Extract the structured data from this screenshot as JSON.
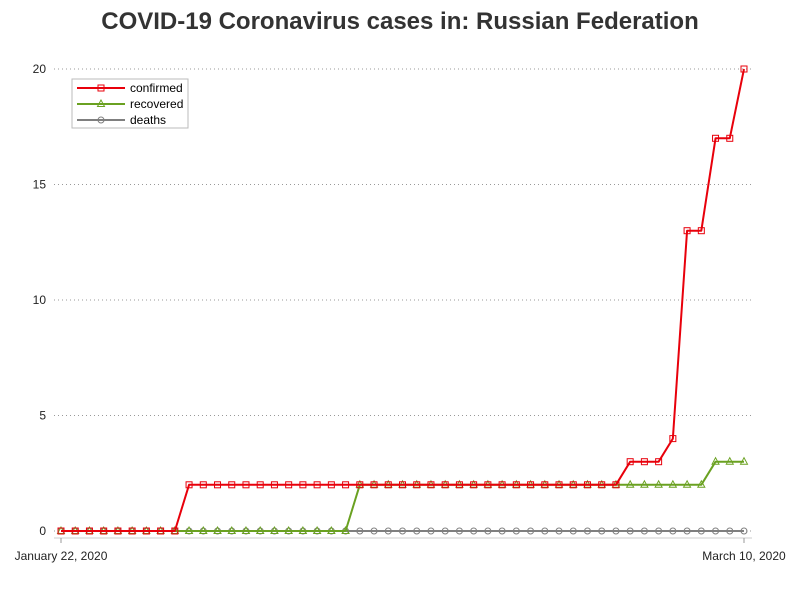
{
  "title": "COVID-19 Coronavirus cases in: Russian Federation",
  "chart_data": {
    "type": "line",
    "title": "COVID-19 Coronavirus cases in: Russian Federation",
    "x": [
      "2020-01-22",
      "2020-01-23",
      "2020-01-24",
      "2020-01-25",
      "2020-01-26",
      "2020-01-27",
      "2020-01-28",
      "2020-01-29",
      "2020-01-30",
      "2020-01-31",
      "2020-02-01",
      "2020-02-02",
      "2020-02-03",
      "2020-02-04",
      "2020-02-05",
      "2020-02-06",
      "2020-02-07",
      "2020-02-08",
      "2020-02-09",
      "2020-02-10",
      "2020-02-11",
      "2020-02-12",
      "2020-02-13",
      "2020-02-14",
      "2020-02-15",
      "2020-02-16",
      "2020-02-17",
      "2020-02-18",
      "2020-02-19",
      "2020-02-20",
      "2020-02-21",
      "2020-02-22",
      "2020-02-23",
      "2020-02-24",
      "2020-02-25",
      "2020-02-26",
      "2020-02-27",
      "2020-02-28",
      "2020-02-29",
      "2020-03-01",
      "2020-03-02",
      "2020-03-03",
      "2020-03-04",
      "2020-03-05",
      "2020-03-06",
      "2020-03-07",
      "2020-03-08",
      "2020-03-09",
      "2020-03-10"
    ],
    "xtick_labels": [
      "January 22, 2020",
      "March 10, 2020"
    ],
    "ylim": [
      0,
      20
    ],
    "yticks": [
      0,
      5,
      10,
      15,
      20
    ],
    "grid": "horizontal dotted",
    "legend_position": "top-left",
    "series": [
      {
        "name": "confirmed",
        "color": "#e8000b",
        "marker": "square",
        "values": [
          0,
          0,
          0,
          0,
          0,
          0,
          0,
          0,
          0,
          2,
          2,
          2,
          2,
          2,
          2,
          2,
          2,
          2,
          2,
          2,
          2,
          2,
          2,
          2,
          2,
          2,
          2,
          2,
          2,
          2,
          2,
          2,
          2,
          2,
          2,
          2,
          2,
          2,
          2,
          2,
          3,
          3,
          3,
          4,
          13,
          13,
          17,
          17,
          20
        ]
      },
      {
        "name": "recovered",
        "color": "#6aa121",
        "marker": "triangle",
        "values": [
          0,
          0,
          0,
          0,
          0,
          0,
          0,
          0,
          0,
          0,
          0,
          0,
          0,
          0,
          0,
          0,
          0,
          0,
          0,
          0,
          0,
          2,
          2,
          2,
          2,
          2,
          2,
          2,
          2,
          2,
          2,
          2,
          2,
          2,
          2,
          2,
          2,
          2,
          2,
          2,
          2,
          2,
          2,
          2,
          2,
          2,
          3,
          3,
          3
        ]
      },
      {
        "name": "deaths",
        "color": "#7f7f7f",
        "marker": "circle",
        "values": [
          0,
          0,
          0,
          0,
          0,
          0,
          0,
          0,
          0,
          0,
          0,
          0,
          0,
          0,
          0,
          0,
          0,
          0,
          0,
          0,
          0,
          0,
          0,
          0,
          0,
          0,
          0,
          0,
          0,
          0,
          0,
          0,
          0,
          0,
          0,
          0,
          0,
          0,
          0,
          0,
          0,
          0,
          0,
          0,
          0,
          0,
          0,
          0,
          0
        ]
      }
    ]
  }
}
